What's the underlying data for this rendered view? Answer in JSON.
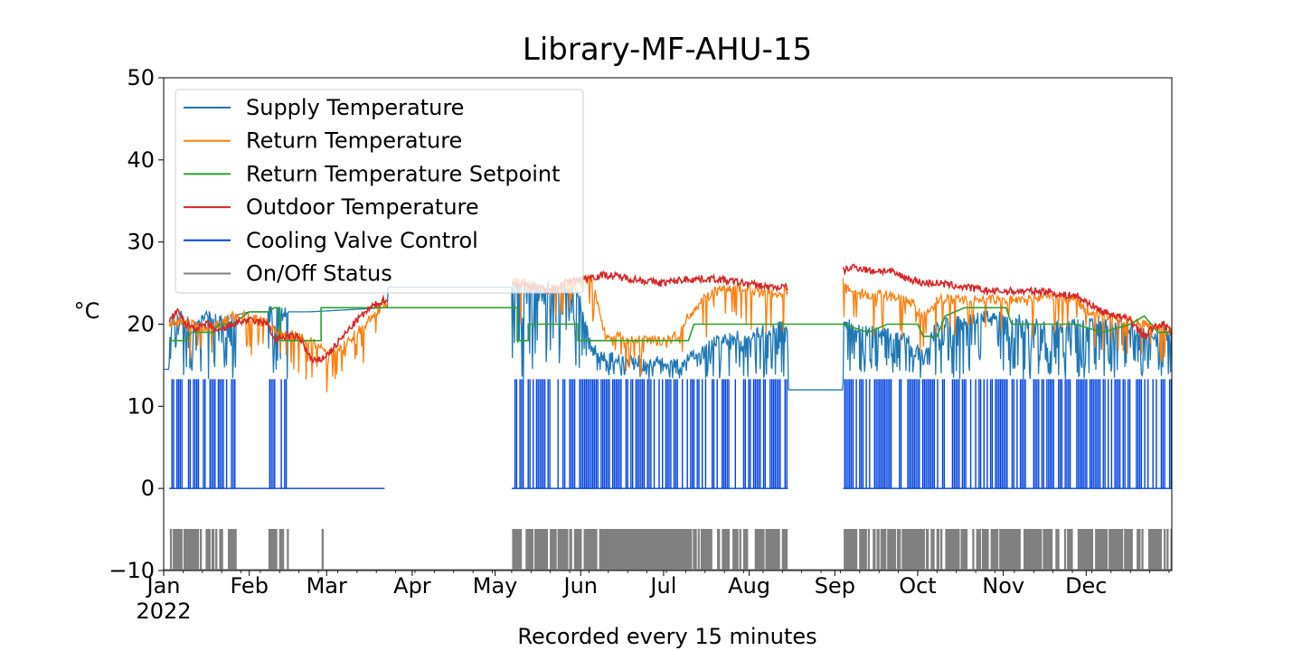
{
  "chart_data": {
    "type": "line",
    "title": "Library-MF-AHU-15",
    "xlabel": "Recorded every 15 minutes",
    "ylabel": "°C",
    "ylim": [
      -10,
      50
    ],
    "xlim": [
      0,
      365
    ],
    "y_ticks": [
      "−10",
      "0",
      "10",
      "20",
      "30",
      "40",
      "50"
    ],
    "y_tick_values": [
      -10,
      0,
      10,
      20,
      30,
      40,
      50
    ],
    "x_ticks": [
      {
        "label": "Jan",
        "day": 0
      },
      {
        "label": "Feb",
        "day": 31
      },
      {
        "label": "Mar",
        "day": 59
      },
      {
        "label": "Apr",
        "day": 90
      },
      {
        "label": "May",
        "day": 120
      },
      {
        "label": "Jun",
        "day": 151
      },
      {
        "label": "Jul",
        "day": 181
      },
      {
        "label": "Aug",
        "day": 212
      },
      {
        "label": "Sep",
        "day": 243
      },
      {
        "label": "Oct",
        "day": 273
      },
      {
        "label": "Nov",
        "day": 304
      },
      {
        "label": "Dec",
        "day": 334
      }
    ],
    "year_label": "2022",
    "legend_position": "upper-left",
    "series": [
      {
        "name": "Supply Temperature",
        "color": "#1f77b4",
        "points": [
          [
            0,
            14.5
          ],
          [
            2,
            14.5
          ],
          [
            2,
            20.5
          ],
          [
            6,
            21
          ],
          [
            10,
            20
          ],
          [
            16,
            21
          ],
          [
            20,
            20.5
          ],
          [
            25,
            21
          ],
          [
            31,
            21.5
          ],
          [
            36,
            21.5
          ],
          [
            40,
            21.5
          ],
          [
            43,
            21.5
          ],
          [
            50,
            21.5
          ],
          [
            53,
            21.5
          ],
          [
            80,
            22
          ],
          [
            81,
            22
          ],
          [
            81,
            24.5
          ],
          [
            126,
            24.5
          ],
          [
            126,
            24.5
          ],
          [
            130,
            24.5
          ],
          [
            135,
            24.5
          ],
          [
            140,
            24.5
          ],
          [
            147,
            24
          ],
          [
            150,
            24
          ],
          [
            155,
            17
          ],
          [
            160,
            16
          ],
          [
            170,
            15.5
          ],
          [
            180,
            15.5
          ],
          [
            187,
            15
          ],
          [
            190,
            16
          ],
          [
            200,
            18
          ],
          [
            215,
            19
          ],
          [
            225,
            20
          ],
          [
            226,
            20
          ],
          [
            226,
            12
          ],
          [
            246,
            12
          ],
          [
            246,
            20
          ],
          [
            260,
            19
          ],
          [
            270,
            18
          ],
          [
            275,
            16
          ],
          [
            280,
            20
          ],
          [
            300,
            21
          ],
          [
            320,
            20
          ],
          [
            335,
            20
          ],
          [
            345,
            20
          ],
          [
            355,
            19
          ],
          [
            365,
            19
          ]
        ]
      },
      {
        "name": "Return Temperature",
        "color": "#ff7f0e",
        "points": [
          [
            2,
            20
          ],
          [
            5,
            20.5
          ],
          [
            10,
            20
          ],
          [
            15,
            19.5
          ],
          [
            20,
            20
          ],
          [
            25,
            21
          ],
          [
            30,
            21
          ],
          [
            38,
            20
          ],
          [
            42,
            19
          ],
          [
            50,
            18.5
          ],
          [
            55,
            17.5
          ],
          [
            60,
            16.5
          ],
          [
            64,
            17
          ],
          [
            70,
            19
          ],
          [
            76,
            21
          ],
          [
            80,
            22.5
          ],
          [
            126,
            25
          ],
          [
            130,
            25
          ],
          [
            140,
            24
          ],
          [
            147,
            25
          ],
          [
            155,
            25.5
          ],
          [
            160,
            18.5
          ],
          [
            165,
            18.5
          ],
          [
            170,
            18
          ],
          [
            180,
            18
          ],
          [
            186,
            18.5
          ],
          [
            190,
            21
          ],
          [
            195,
            23
          ],
          [
            200,
            24
          ],
          [
            208,
            24.5
          ],
          [
            215,
            24
          ],
          [
            222,
            23.5
          ],
          [
            225,
            24
          ],
          [
            246,
            25
          ],
          [
            250,
            24
          ],
          [
            256,
            23.5
          ],
          [
            262,
            23.5
          ],
          [
            270,
            23
          ],
          [
            275,
            21
          ],
          [
            280,
            23
          ],
          [
            290,
            23
          ],
          [
            300,
            23
          ],
          [
            310,
            23
          ],
          [
            320,
            23.5
          ],
          [
            330,
            23
          ],
          [
            335,
            21.5
          ],
          [
            342,
            21
          ],
          [
            348,
            20.5
          ],
          [
            355,
            20
          ],
          [
            360,
            19.5
          ],
          [
            365,
            19
          ]
        ]
      },
      {
        "name": "Return Temperature Setpoint",
        "color": "#2ca02c",
        "points": [
          [
            2,
            18
          ],
          [
            8,
            18
          ],
          [
            10,
            19
          ],
          [
            18,
            19
          ],
          [
            20,
            20
          ],
          [
            25,
            20
          ],
          [
            31,
            21.5
          ],
          [
            38,
            21.5
          ],
          [
            40,
            22
          ],
          [
            42,
            22
          ],
          [
            42,
            18
          ],
          [
            57,
            18
          ],
          [
            57,
            22
          ],
          [
            80,
            22
          ],
          [
            126,
            22
          ],
          [
            128,
            22
          ],
          [
            128,
            18
          ],
          [
            132,
            18
          ],
          [
            132,
            20
          ],
          [
            150,
            20
          ],
          [
            150,
            18
          ],
          [
            190,
            18
          ],
          [
            192,
            20
          ],
          [
            226,
            20
          ],
          [
            246,
            20
          ],
          [
            255,
            19
          ],
          [
            262,
            20
          ],
          [
            270,
            20
          ],
          [
            273,
            20
          ],
          [
            275,
            18.5
          ],
          [
            280,
            18.5
          ],
          [
            283,
            21
          ],
          [
            290,
            22
          ],
          [
            305,
            22
          ],
          [
            307,
            20
          ],
          [
            330,
            20
          ],
          [
            340,
            19
          ],
          [
            350,
            20
          ],
          [
            355,
            21
          ],
          [
            360,
            19
          ],
          [
            365,
            19
          ]
        ]
      },
      {
        "name": "Outdoor Temperature",
        "color": "#d62728",
        "points": [
          [
            2,
            20.5
          ],
          [
            5,
            21.5
          ],
          [
            8,
            20
          ],
          [
            12,
            19.5
          ],
          [
            16,
            20
          ],
          [
            20,
            19
          ],
          [
            25,
            20
          ],
          [
            30,
            20.5
          ],
          [
            38,
            20
          ],
          [
            40,
            18
          ],
          [
            44,
            18.5
          ],
          [
            48,
            18.5
          ],
          [
            50,
            18
          ],
          [
            52,
            16.5
          ],
          [
            54,
            15.5
          ],
          [
            56,
            15.5
          ],
          [
            60,
            16.5
          ],
          [
            65,
            18.5
          ],
          [
            70,
            20.5
          ],
          [
            75,
            22
          ],
          [
            80,
            23
          ],
          [
            126,
            25
          ],
          [
            135,
            24.5
          ],
          [
            140,
            24
          ],
          [
            145,
            25
          ],
          [
            150,
            25.5
          ],
          [
            160,
            26
          ],
          [
            170,
            25.5
          ],
          [
            180,
            25
          ],
          [
            190,
            25.5
          ],
          [
            200,
            25.5
          ],
          [
            210,
            25
          ],
          [
            220,
            24.5
          ],
          [
            226,
            24.5
          ],
          [
            246,
            26.5
          ],
          [
            250,
            27
          ],
          [
            256,
            26.5
          ],
          [
            262,
            26.5
          ],
          [
            270,
            25.5
          ],
          [
            275,
            25
          ],
          [
            280,
            25
          ],
          [
            290,
            24.5
          ],
          [
            300,
            24
          ],
          [
            310,
            24
          ],
          [
            320,
            24
          ],
          [
            325,
            23.5
          ],
          [
            330,
            23.5
          ],
          [
            335,
            22.5
          ],
          [
            340,
            21.5
          ],
          [
            345,
            21
          ],
          [
            350,
            20.5
          ],
          [
            355,
            18.5
          ],
          [
            358,
            19.5
          ],
          [
            362,
            20
          ],
          [
            365,
            19
          ]
        ]
      },
      {
        "name": "Cooling Valve Control",
        "color": "#0343df",
        "level": 13.3,
        "baseline": 0,
        "active_ranges": [
          [
            2,
            26
          ],
          [
            38,
            45
          ],
          [
            126,
            226
          ],
          [
            246,
            365
          ]
        ],
        "zero_ranges": [
          [
            2,
            80
          ],
          [
            126,
            226
          ],
          [
            246,
            365
          ]
        ]
      },
      {
        "name": "On/Off Status",
        "color": "#808080",
        "on_value": -5,
        "off_value": -10,
        "active_ranges": [
          [
            2,
            26
          ],
          [
            38,
            45
          ],
          [
            57,
            58
          ],
          [
            126,
            226
          ],
          [
            246,
            365
          ]
        ],
        "solid_on_ranges": [
          [
            159,
            190
          ]
        ]
      }
    ]
  }
}
